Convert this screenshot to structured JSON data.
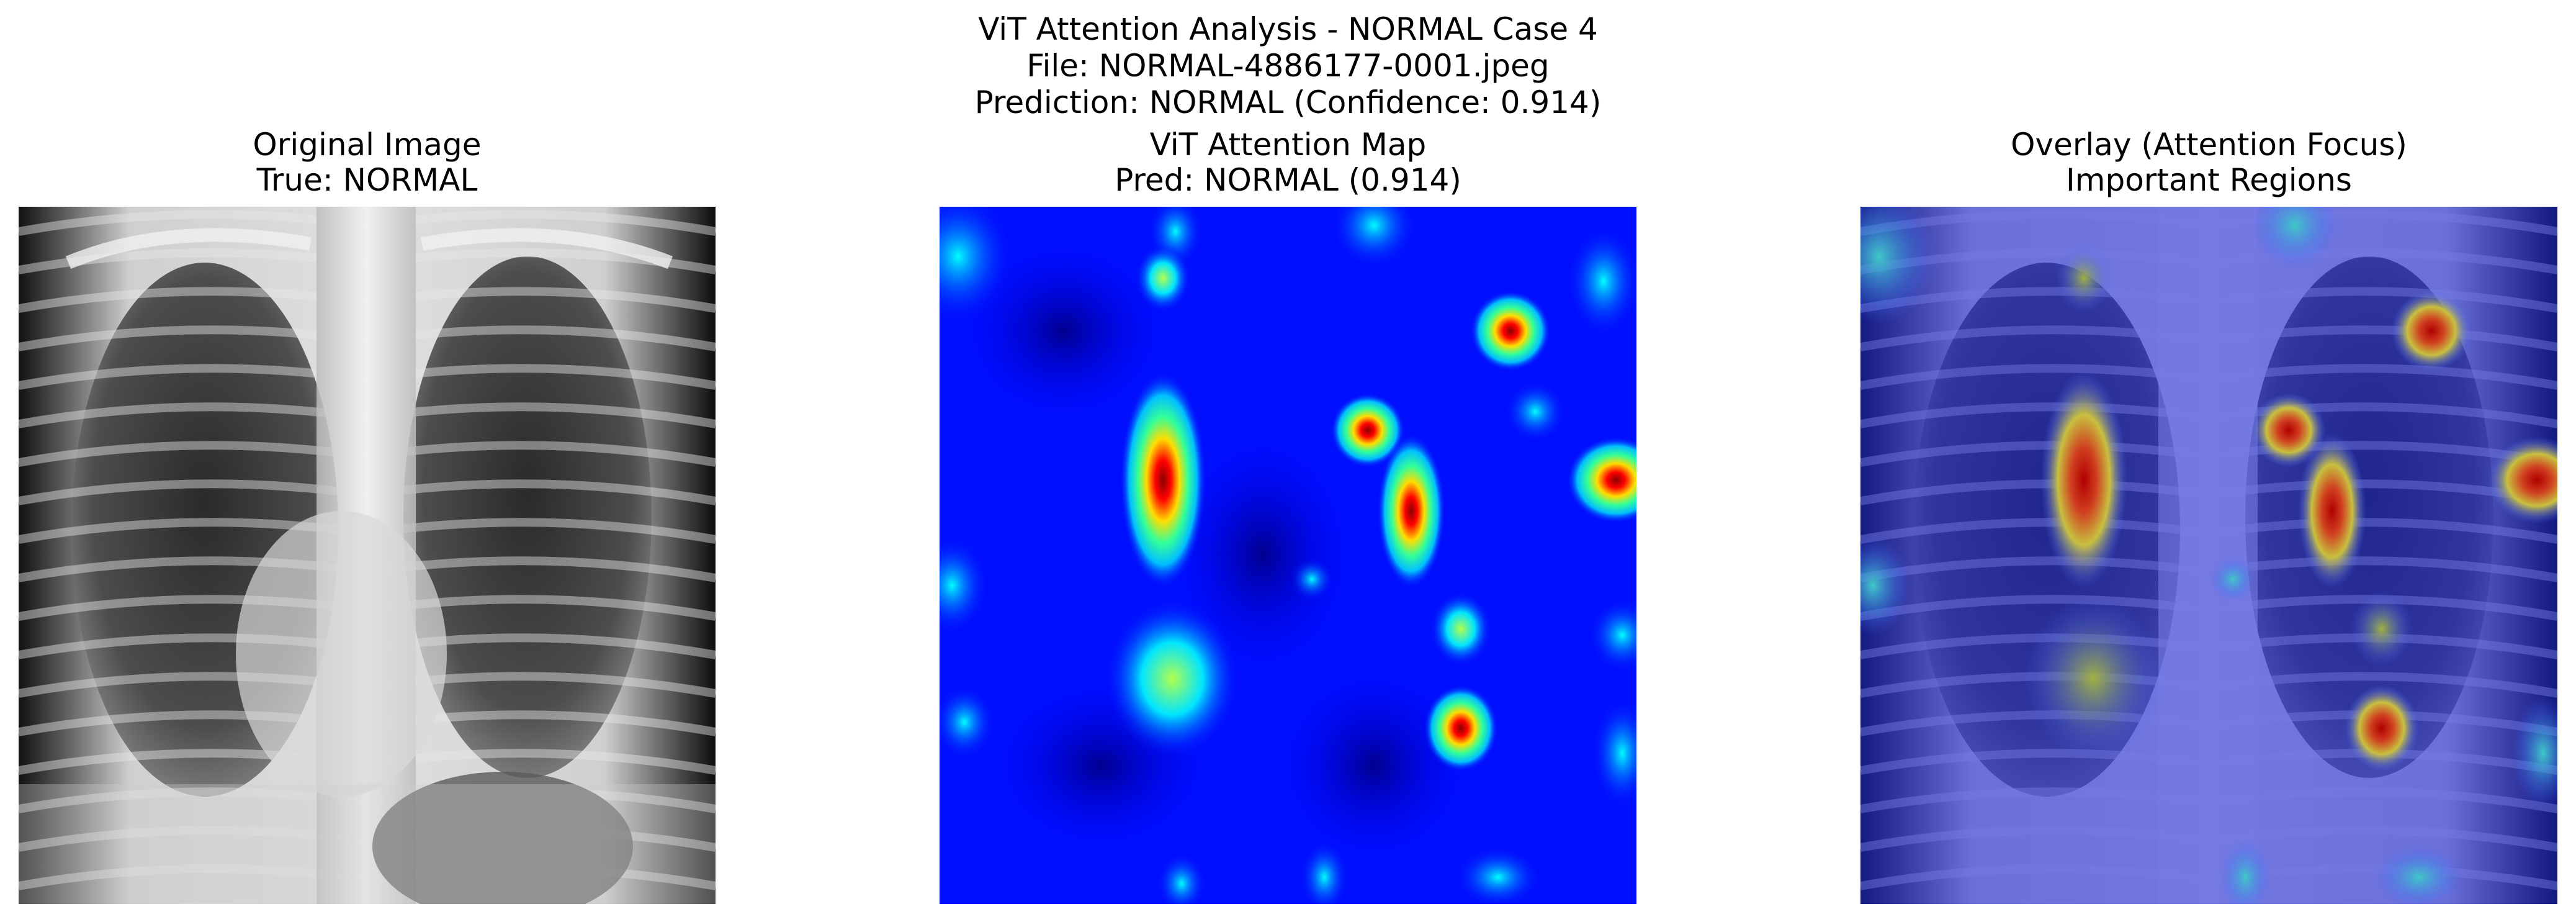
{
  "figure": {
    "suptitle_lines": [
      "ViT Attention Analysis - NORMAL Case 4",
      "File: NORMAL-4886177-0001.jpeg",
      "Prediction: NORMAL (Confidence: 0.914)"
    ]
  },
  "panels": [
    {
      "title_line1": "Original Image",
      "title_line2": "True: NORMAL",
      "content": "chest-xray"
    },
    {
      "title_line1": "ViT Attention Map",
      "title_line2": "Pred: NORMAL (0.914)",
      "content": "attention-heatmap",
      "colormap": "jet"
    },
    {
      "title_line1": "Overlay (Attention Focus)",
      "title_line2": "Important Regions",
      "content": "xray-with-attention-overlay"
    }
  ],
  "colors": {
    "jet_low": "#00007f",
    "jet_mid": "#00ffff",
    "jet_high": "#7f0000",
    "background": "#ffffff"
  }
}
